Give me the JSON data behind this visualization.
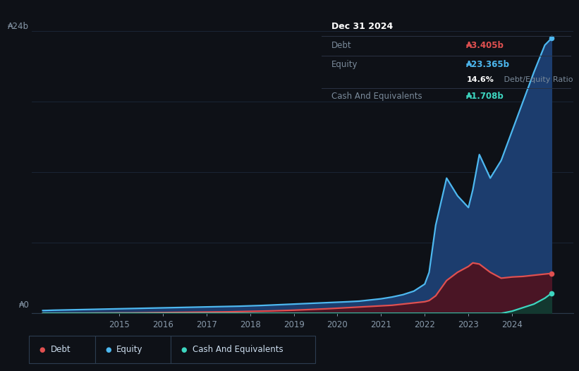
{
  "background_color": "#0e1117",
  "plot_bg_color": "#0e1117",
  "grid_color": "#1a2535",
  "ylabel_text": "₳24b",
  "y0_text": "₳0",
  "xlabel_ticks": [
    2015,
    2016,
    2017,
    2018,
    2019,
    2020,
    2021,
    2022,
    2023,
    2024
  ],
  "legend": [
    {
      "label": "Debt",
      "color": "#e05050"
    },
    {
      "label": "Equity",
      "color": "#4db8f0"
    },
    {
      "label": "Cash And Equivalents",
      "color": "#3dd6c0"
    }
  ],
  "years": [
    2013.25,
    2013.5,
    2014.0,
    2014.25,
    2014.5,
    2014.75,
    2015.0,
    2015.25,
    2015.5,
    2015.75,
    2016.0,
    2016.25,
    2016.5,
    2016.75,
    2017.0,
    2017.25,
    2017.5,
    2017.75,
    2018.0,
    2018.25,
    2018.5,
    2018.75,
    2019.0,
    2019.25,
    2019.5,
    2019.75,
    2020.0,
    2020.25,
    2020.5,
    2020.75,
    2021.0,
    2021.25,
    2021.5,
    2021.75,
    2022.0,
    2022.1,
    2022.25,
    2022.5,
    2022.75,
    2023.0,
    2023.1,
    2023.25,
    2023.5,
    2023.75,
    2024.0,
    2024.25,
    2024.5,
    2024.75,
    2024.9
  ],
  "equity": [
    0.25,
    0.28,
    0.32,
    0.34,
    0.36,
    0.38,
    0.4,
    0.42,
    0.44,
    0.46,
    0.48,
    0.5,
    0.52,
    0.54,
    0.56,
    0.58,
    0.6,
    0.62,
    0.65,
    0.68,
    0.72,
    0.76,
    0.8,
    0.84,
    0.88,
    0.92,
    0.96,
    1.0,
    1.05,
    1.15,
    1.25,
    1.4,
    1.6,
    1.9,
    2.5,
    3.5,
    7.5,
    11.5,
    10.0,
    9.0,
    10.5,
    13.5,
    11.5,
    13.0,
    15.5,
    18.0,
    20.5,
    22.8,
    23.365
  ],
  "debt": [
    0.02,
    0.02,
    0.03,
    0.03,
    0.04,
    0.04,
    0.05,
    0.05,
    0.06,
    0.07,
    0.08,
    0.09,
    0.1,
    0.11,
    0.12,
    0.13,
    0.14,
    0.16,
    0.18,
    0.2,
    0.22,
    0.25,
    0.28,
    0.32,
    0.36,
    0.4,
    0.45,
    0.5,
    0.55,
    0.6,
    0.65,
    0.7,
    0.8,
    0.9,
    1.0,
    1.1,
    1.5,
    2.8,
    3.5,
    4.0,
    4.3,
    4.2,
    3.5,
    3.0,
    3.1,
    3.15,
    3.25,
    3.35,
    3.405
  ],
  "cash": [
    0.01,
    0.01,
    0.01,
    0.01,
    0.01,
    0.01,
    0.01,
    0.01,
    0.01,
    0.01,
    0.01,
    0.01,
    0.01,
    0.01,
    0.01,
    0.01,
    0.01,
    0.01,
    0.01,
    0.01,
    0.01,
    0.01,
    0.01,
    0.01,
    0.01,
    0.01,
    0.01,
    0.01,
    0.01,
    0.01,
    0.01,
    0.01,
    0.01,
    0.01,
    0.01,
    0.01,
    0.01,
    0.01,
    0.01,
    0.01,
    0.01,
    0.01,
    0.01,
    0.01,
    0.2,
    0.5,
    0.8,
    1.3,
    1.708
  ],
  "ylim": [
    0,
    26
  ],
  "xlim_min": 2013.0,
  "xlim_max": 2025.4,
  "equity_line_color": "#4db8f0",
  "equity_fill_color": "#1c3d6e",
  "debt_line_color": "#e05050",
  "debt_fill_color": "#4a1525",
  "cash_line_color": "#3dd6c0",
  "cash_fill_color": "#133830",
  "tooltip": {
    "date": "Dec 31 2024",
    "debt_label": "Debt",
    "debt_value": "₳3.405b",
    "debt_color": "#e05050",
    "equity_label": "Equity",
    "equity_value": "₳23.365b",
    "equity_color": "#4db8f0",
    "ratio_pct": "14.6%",
    "ratio_rest": " Debt/Equity Ratio",
    "cash_label": "Cash And Equivalents",
    "cash_value": "₳1.708b",
    "cash_color": "#3dd6c0",
    "bg_color": "#080c14",
    "border_color": "#2a3344",
    "text_dim": "#7a8a9a",
    "text_bright": "#ffffff"
  }
}
